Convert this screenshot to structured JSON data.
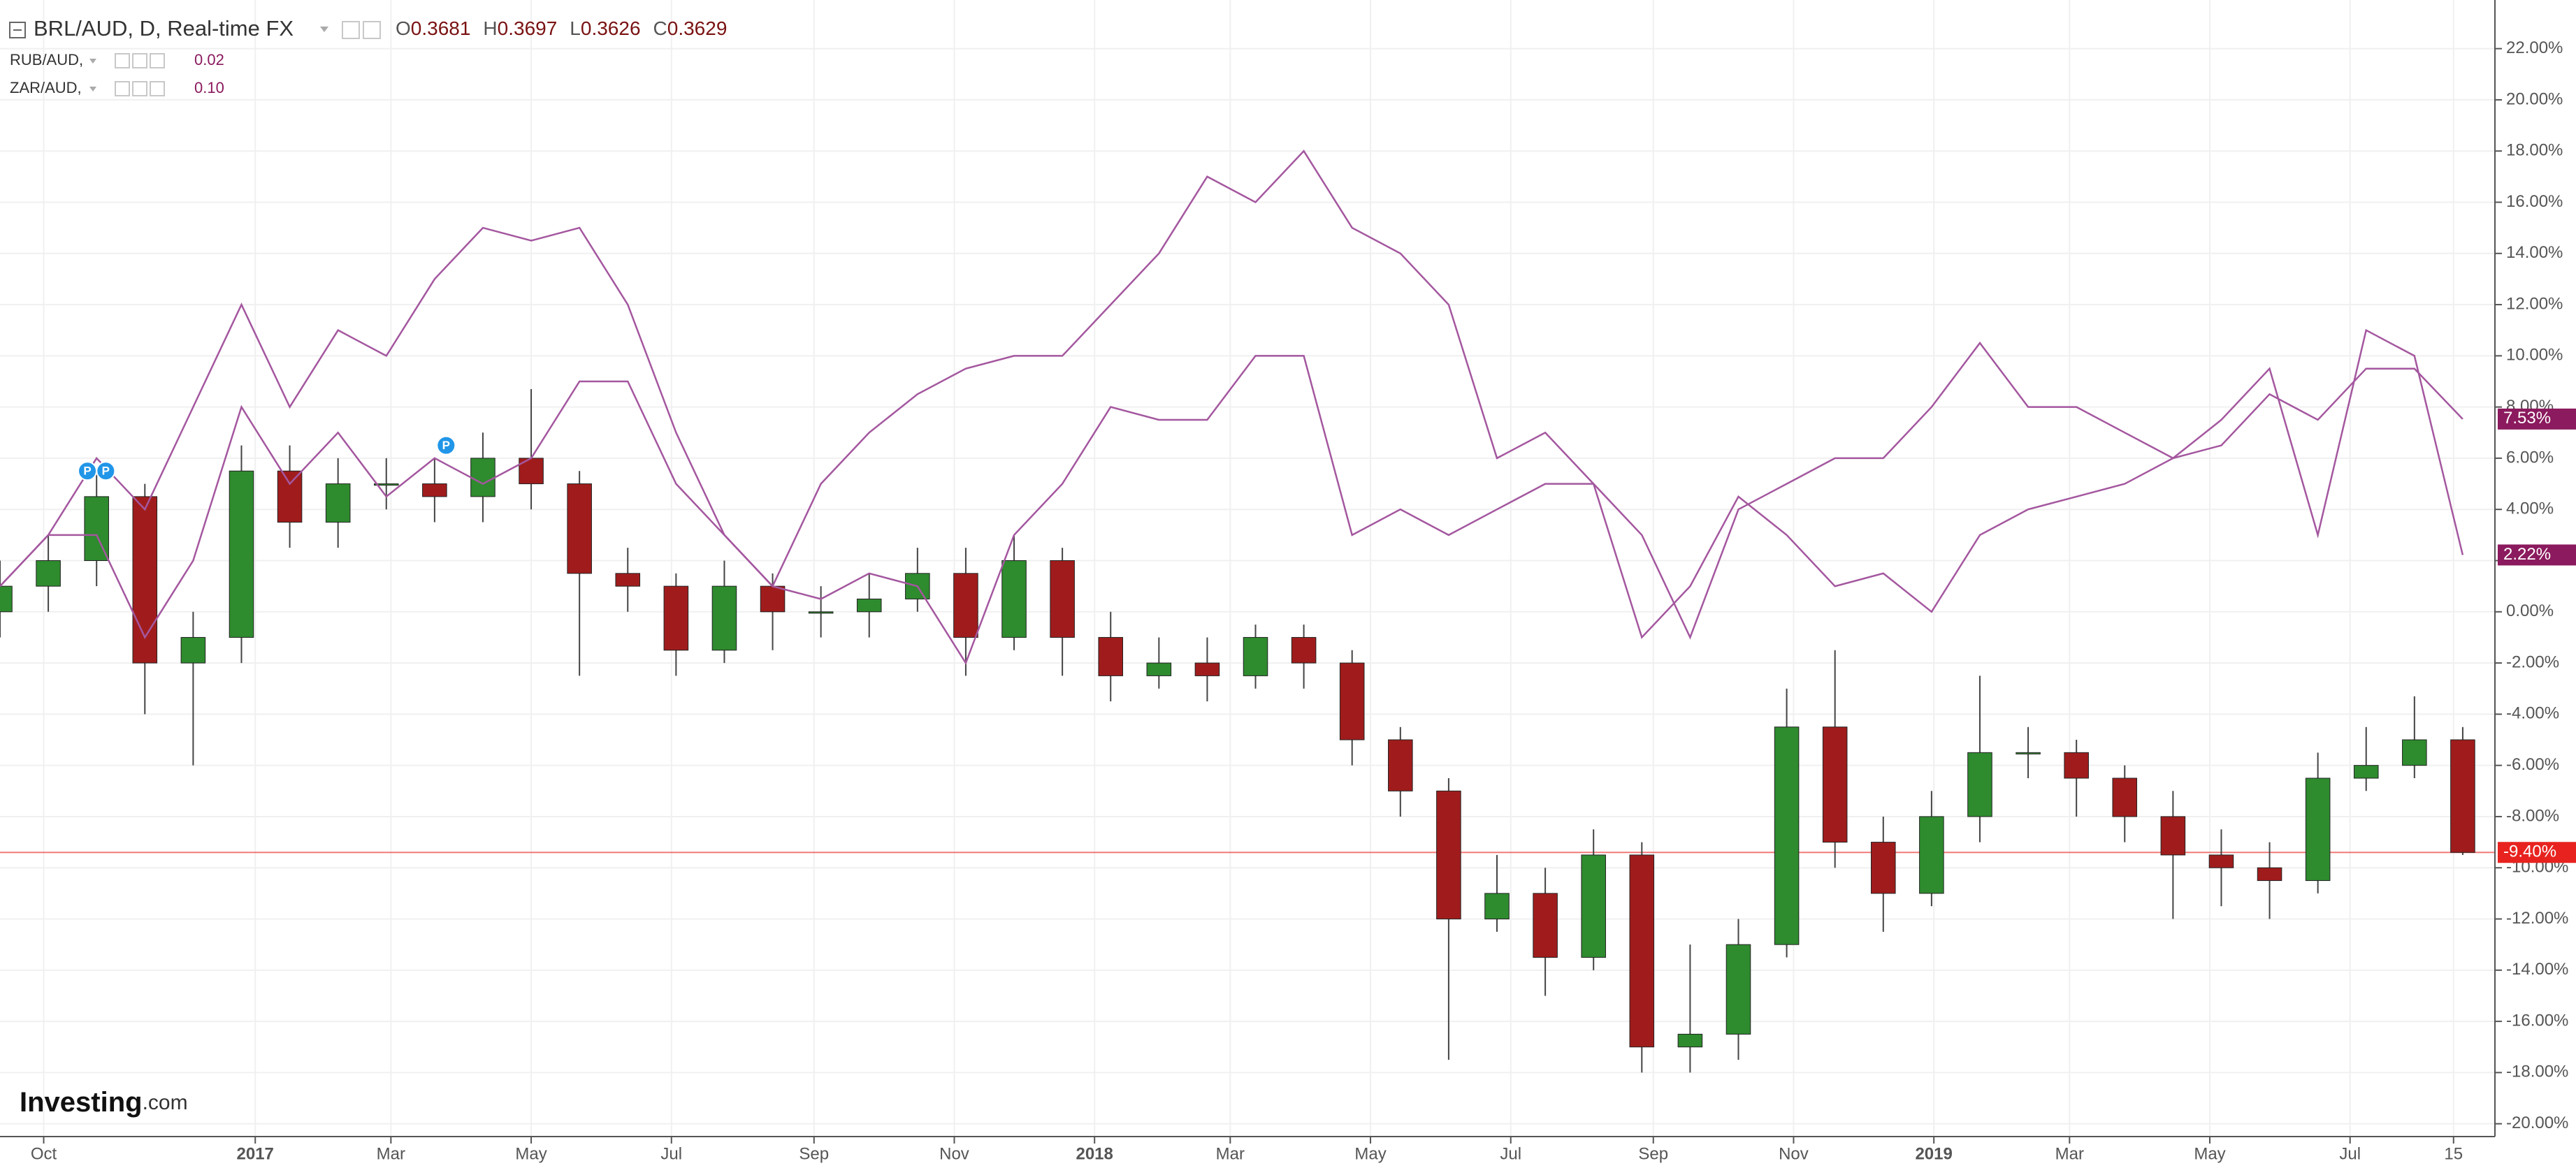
{
  "chart_data": {
    "type": "candlestick",
    "title": "BRL/AUD, D, Real-time FX",
    "ohlc_header": [
      {
        "label": "O",
        "value": "0.3681"
      },
      {
        "label": "H",
        "value": "0.3697"
      },
      {
        "label": "L",
        "value": "0.3626"
      },
      {
        "label": "C",
        "value": "0.3629"
      }
    ],
    "logo": {
      "main": "Investing",
      "suffix": ".com"
    },
    "x": [
      0,
      21,
      42,
      63,
      84,
      105,
      126,
      147,
      168,
      189,
      210,
      231,
      252,
      273,
      294,
      315,
      336,
      357,
      378,
      399,
      420,
      441,
      462,
      483,
      504,
      525,
      546,
      567,
      588,
      609,
      630,
      651,
      672,
      693,
      714,
      735,
      756,
      777,
      798,
      819,
      840,
      861,
      882,
      903,
      924,
      945,
      966,
      987,
      1008,
      1029,
      1050,
      1071
    ],
    "xlim": [
      0,
      1085
    ],
    "xticks": [
      {
        "value": 19,
        "label": "Oct"
      },
      {
        "value": 111,
        "label": "2017"
      },
      {
        "value": 170,
        "label": "Mar"
      },
      {
        "value": 231,
        "label": "May"
      },
      {
        "value": 292,
        "label": "Jul"
      },
      {
        "value": 354,
        "label": "Sep"
      },
      {
        "value": 415,
        "label": "Nov"
      },
      {
        "value": 476,
        "label": "2018"
      },
      {
        "value": 535,
        "label": "Mar"
      },
      {
        "value": 596,
        "label": "May"
      },
      {
        "value": 657,
        "label": "Jul"
      },
      {
        "value": 719,
        "label": "Sep"
      },
      {
        "value": 780,
        "label": "Nov"
      },
      {
        "value": 841,
        "label": "2019"
      },
      {
        "value": 900,
        "label": "Mar"
      },
      {
        "value": 961,
        "label": "May"
      },
      {
        "value": 1022,
        "label": "Jul"
      },
      {
        "value": 1067,
        "label": "15"
      }
    ],
    "ylim": [
      -20.5,
      23.9
    ],
    "yticks": [
      {
        "value": -20,
        "label": "-20.00%"
      },
      {
        "value": -18,
        "label": "-18.00%"
      },
      {
        "value": -16,
        "label": "-16.00%"
      },
      {
        "value": -14,
        "label": "-14.00%"
      },
      {
        "value": -12,
        "label": "-12.00%"
      },
      {
        "value": -10,
        "label": "-10.00%"
      },
      {
        "value": -8,
        "label": "-8.00%"
      },
      {
        "value": -6,
        "label": "-6.00%"
      },
      {
        "value": -4,
        "label": "-4.00%"
      },
      {
        "value": -2,
        "label": "-2.00%"
      },
      {
        "value": 0,
        "label": "0.00%"
      },
      {
        "value": 2,
        "label": "2.00%"
      },
      {
        "value": 4,
        "label": "4.00%"
      },
      {
        "value": 6,
        "label": "6.00%"
      },
      {
        "value": 8,
        "label": "8.00%"
      },
      {
        "value": 10,
        "label": "10.00%"
      },
      {
        "value": 12,
        "label": "12.00%"
      },
      {
        "value": 14,
        "label": "14.00%"
      },
      {
        "value": 16,
        "label": "16.00%"
      },
      {
        "value": 18,
        "label": "18.00%"
      },
      {
        "value": 20,
        "label": "20.00%"
      },
      {
        "value": 22,
        "label": "22.00%"
      }
    ],
    "grid": true,
    "series": [
      {
        "name": "BRL/AUD",
        "type": "candlestick",
        "up_color": "#2e8b2e",
        "down_color": "#a01c1c",
        "color": "#e8231f",
        "open": [
          0,
          1,
          2,
          4.5,
          -2,
          -1,
          5.5,
          3.5,
          5,
          5,
          4.5,
          6,
          5,
          1.5,
          1,
          -1.5,
          1,
          0,
          0,
          0.5,
          1.5,
          -1,
          2,
          -1,
          -2.5,
          -2,
          -2.5,
          -1,
          -2,
          -5,
          -7,
          -12,
          -11,
          -13.5,
          -9.5,
          -17,
          -16.5,
          -13,
          -4.5,
          -9,
          -11,
          -8,
          -5.5,
          -5.5,
          -6.5,
          -8,
          -9.5,
          -10,
          -10.5,
          -6.5,
          -6,
          -5
        ],
        "high": [
          2,
          3,
          5.5,
          5,
          0,
          6.5,
          6.5,
          6,
          6,
          6,
          7,
          8.7,
          5.5,
          2.5,
          1.5,
          2,
          1.5,
          1,
          1.5,
          2.5,
          2.5,
          3,
          2.5,
          0,
          -1,
          -1,
          -0.5,
          -0.5,
          -1.5,
          -4.5,
          -6.5,
          -9.5,
          -10,
          -8.5,
          -9,
          -13,
          -12,
          -3,
          -1.5,
          -8,
          -7,
          -2.5,
          -4.5,
          -5,
          -6,
          -7,
          -8.5,
          -9,
          -5.5,
          -4.5,
          -3.3,
          -4.5
        ],
        "low": [
          -1,
          0,
          1,
          -4,
          -6,
          -2,
          2.5,
          2.5,
          4,
          3.5,
          3.5,
          4,
          -2.5,
          0,
          -2.5,
          -2,
          -1.5,
          -1,
          -1,
          0,
          -2.5,
          -1.5,
          -2.5,
          -3.5,
          -3,
          -3.5,
          -3,
          -3,
          -6,
          -8,
          -17.5,
          -12.5,
          -15,
          -14,
          -18,
          -18,
          -17.5,
          -13.5,
          -10,
          -12.5,
          -11.5,
          -9,
          -6.5,
          -8,
          -9,
          -12,
          -11.5,
          -12,
          -11,
          -7,
          -6.5,
          -9.5
        ],
        "close": [
          1,
          2,
          4.5,
          -2,
          -1,
          5.5,
          3.5,
          5,
          5,
          4.5,
          6,
          5,
          1.5,
          1,
          -1.5,
          1,
          0,
          0,
          0.5,
          1.5,
          -1,
          2,
          -1,
          -2.5,
          -2,
          -2.5,
          -1,
          -2,
          -5,
          -7,
          -12,
          -11,
          -13.5,
          -9.5,
          -17,
          -16.5,
          -13,
          -4.5,
          -9,
          -11,
          -8,
          -5.5,
          -5.5,
          -6.5,
          -8,
          -9.5,
          -10,
          -10.5,
          -6.5,
          -6,
          -5,
          -9.4
        ],
        "last_label": {
          "value": -9.4,
          "label": "-9.40%"
        }
      },
      {
        "name": "RUB/AUD,",
        "type": "line",
        "color": "#a4579f",
        "label_color": "#8b1a5e",
        "legend_value": "0.02",
        "values": [
          1,
          3,
          6,
          4,
          8,
          12,
          8,
          11,
          10,
          13,
          15,
          14.5,
          15,
          12,
          7,
          3,
          1,
          5,
          7,
          8.5,
          9.5,
          10,
          10,
          12,
          14,
          17,
          16,
          18,
          15,
          14,
          12,
          6,
          7,
          5,
          3,
          -1,
          4,
          5,
          6,
          6,
          8,
          10.5,
          8,
          8,
          7,
          6,
          7.5,
          9.5,
          3,
          11,
          10,
          2.22
        ],
        "last_label": {
          "value": 2.22,
          "label": "2.22%"
        }
      },
      {
        "name": "ZAR/AUD,",
        "type": "line",
        "color": "#a4579f",
        "label_color": "#8b1a5e",
        "legend_value": "0.10",
        "values": [
          1,
          3,
          3,
          -1,
          2,
          8,
          5,
          7,
          4.5,
          6,
          5,
          6,
          9,
          9,
          5,
          3,
          1,
          0.5,
          1.5,
          1,
          -2,
          3,
          5,
          8,
          7.5,
          7.5,
          10,
          10,
          3,
          4,
          3,
          4,
          5,
          5,
          -1,
          1,
          4.5,
          3,
          1,
          1.5,
          0,
          3,
          4,
          4.5,
          5,
          6,
          6.5,
          8.5,
          7.5,
          9.5,
          9.5,
          7.53
        ],
        "last_label": {
          "value": 7.53,
          "label": "7.53%"
        }
      }
    ],
    "annotations": [
      {
        "x": 38,
        "y": 5.5,
        "label": "P"
      },
      {
        "x": 46,
        "y": 5.5,
        "label": "P"
      },
      {
        "x": 194,
        "y": 6.5,
        "label": "P"
      }
    ]
  }
}
